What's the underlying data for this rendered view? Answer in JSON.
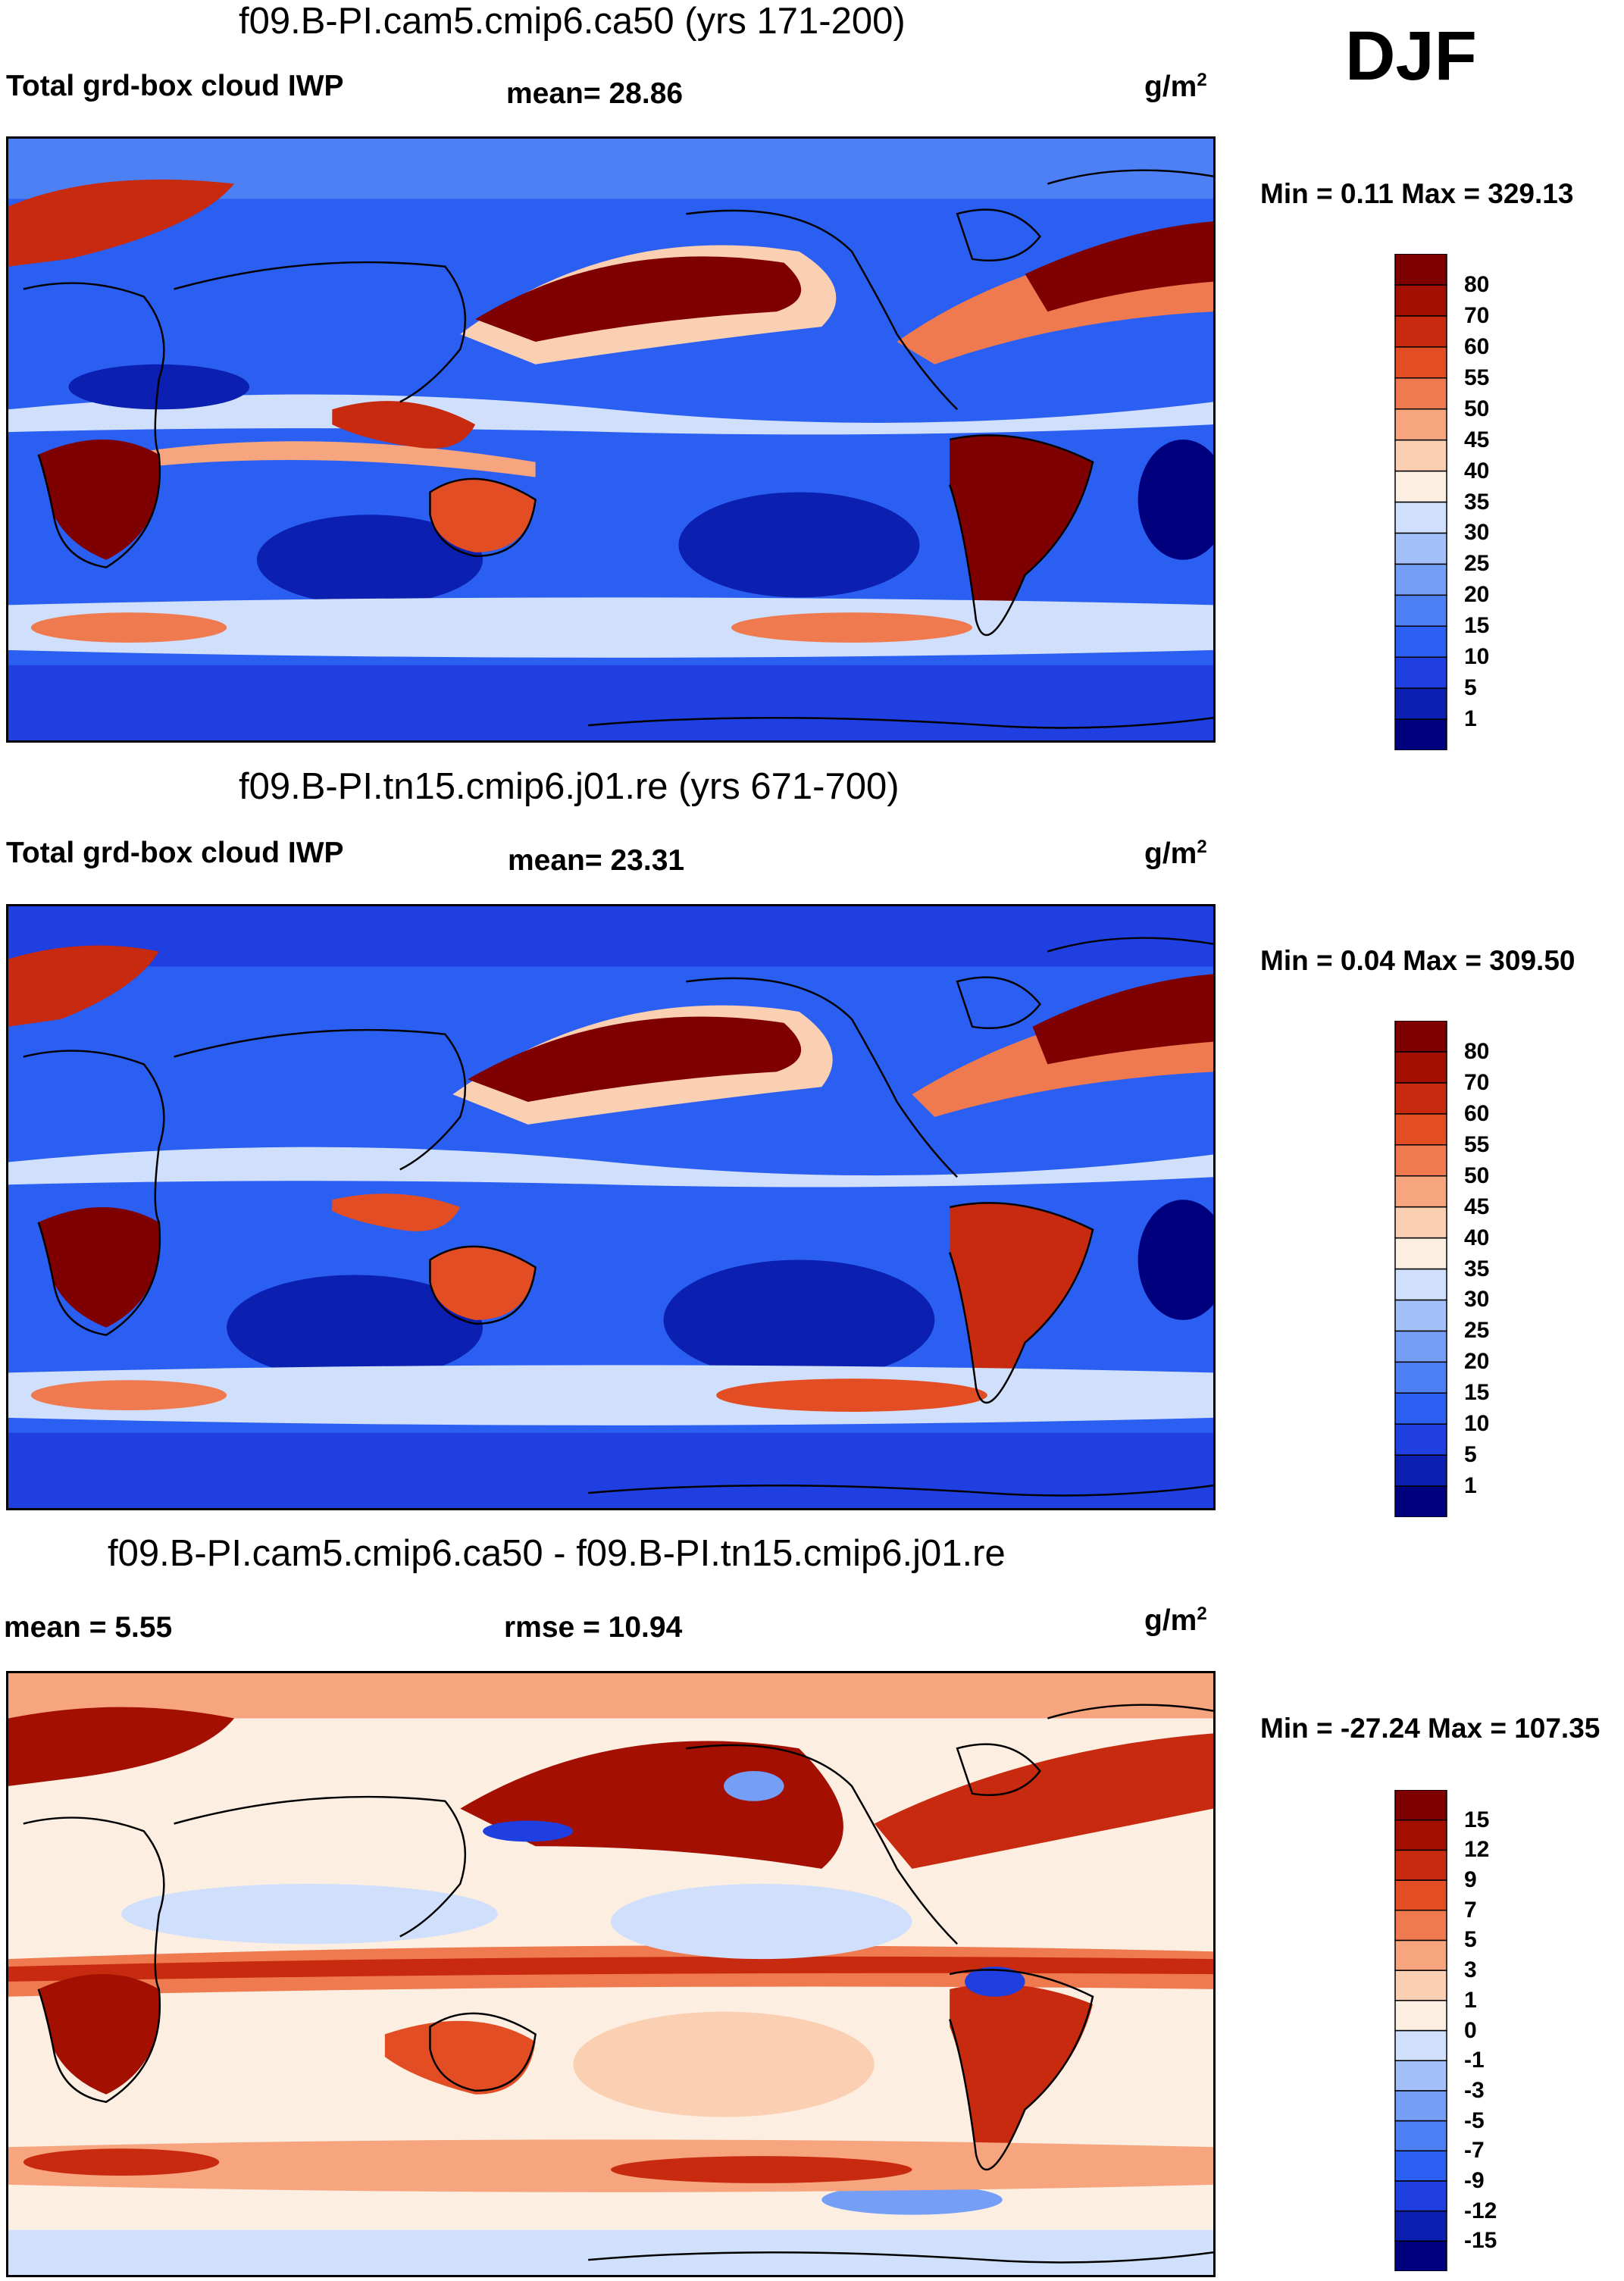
{
  "season": "DJF",
  "panels": [
    {
      "title": "f09.B-PI.cam5.cmip6.ca50 (yrs 171-200)",
      "left_label": "Total grd-box cloud IWP",
      "center_label": "mean=  28.86",
      "units": "g/m",
      "units_exp": "2",
      "minmax": "Min =   0.11 Max = 329.13",
      "colorbar": {
        "levels": [
          "1",
          "5",
          "10",
          "15",
          "20",
          "25",
          "30",
          "35",
          "40",
          "45",
          "50",
          "55",
          "60",
          "70",
          "80"
        ],
        "colors": [
          "#00007f",
          "#0b1fb0",
          "#1f3fe0",
          "#2a5ff2",
          "#4d7ff5",
          "#759ef7",
          "#a3c0f9",
          "#d0e0fc",
          "#fdeee2",
          "#fbcfb2",
          "#f6a57f",
          "#f07a50",
          "#e24d24",
          "#c72a0e",
          "#a30f00",
          "#7f0000"
        ]
      }
    },
    {
      "title": "f09.B-PI.tn15.cmip6.j01.re (yrs 671-700)",
      "left_label": "Total grd-box cloud IWP",
      "center_label": "mean=  23.31",
      "units": "g/m",
      "units_exp": "2",
      "minmax": "Min =   0.04 Max = 309.50",
      "colorbar": {
        "levels": [
          "1",
          "5",
          "10",
          "15",
          "20",
          "25",
          "30",
          "35",
          "40",
          "45",
          "50",
          "55",
          "60",
          "70",
          "80"
        ],
        "colors": [
          "#00007f",
          "#0b1fb0",
          "#1f3fe0",
          "#2a5ff2",
          "#4d7ff5",
          "#759ef7",
          "#a3c0f9",
          "#d0e0fc",
          "#fdeee2",
          "#fbcfb2",
          "#f6a57f",
          "#f07a50",
          "#e24d24",
          "#c72a0e",
          "#a30f00",
          "#7f0000"
        ]
      }
    },
    {
      "title": "f09.B-PI.cam5.cmip6.ca50 - f09.B-PI.tn15.cmip6.j01.re",
      "left_label": "mean =    5.55",
      "center_label": "rmse =  10.94",
      "units": "g/m",
      "units_exp": "2",
      "minmax": "Min = -27.24 Max = 107.35",
      "colorbar": {
        "levels": [
          "-15",
          "-12",
          "-9",
          "-7",
          "-5",
          "-3",
          "-1",
          "0",
          "1",
          "3",
          "5",
          "7",
          "9",
          "12",
          "15"
        ],
        "colors": [
          "#00007f",
          "#0b1fb0",
          "#1f3fe0",
          "#2a5ff2",
          "#4d7ff5",
          "#759ef7",
          "#a3c0f9",
          "#d0e0fc",
          "#fdeee2",
          "#fbcfb2",
          "#f6a57f",
          "#f07a50",
          "#e24d24",
          "#c72a0e",
          "#a30f00",
          "#7f0000"
        ]
      }
    }
  ]
}
